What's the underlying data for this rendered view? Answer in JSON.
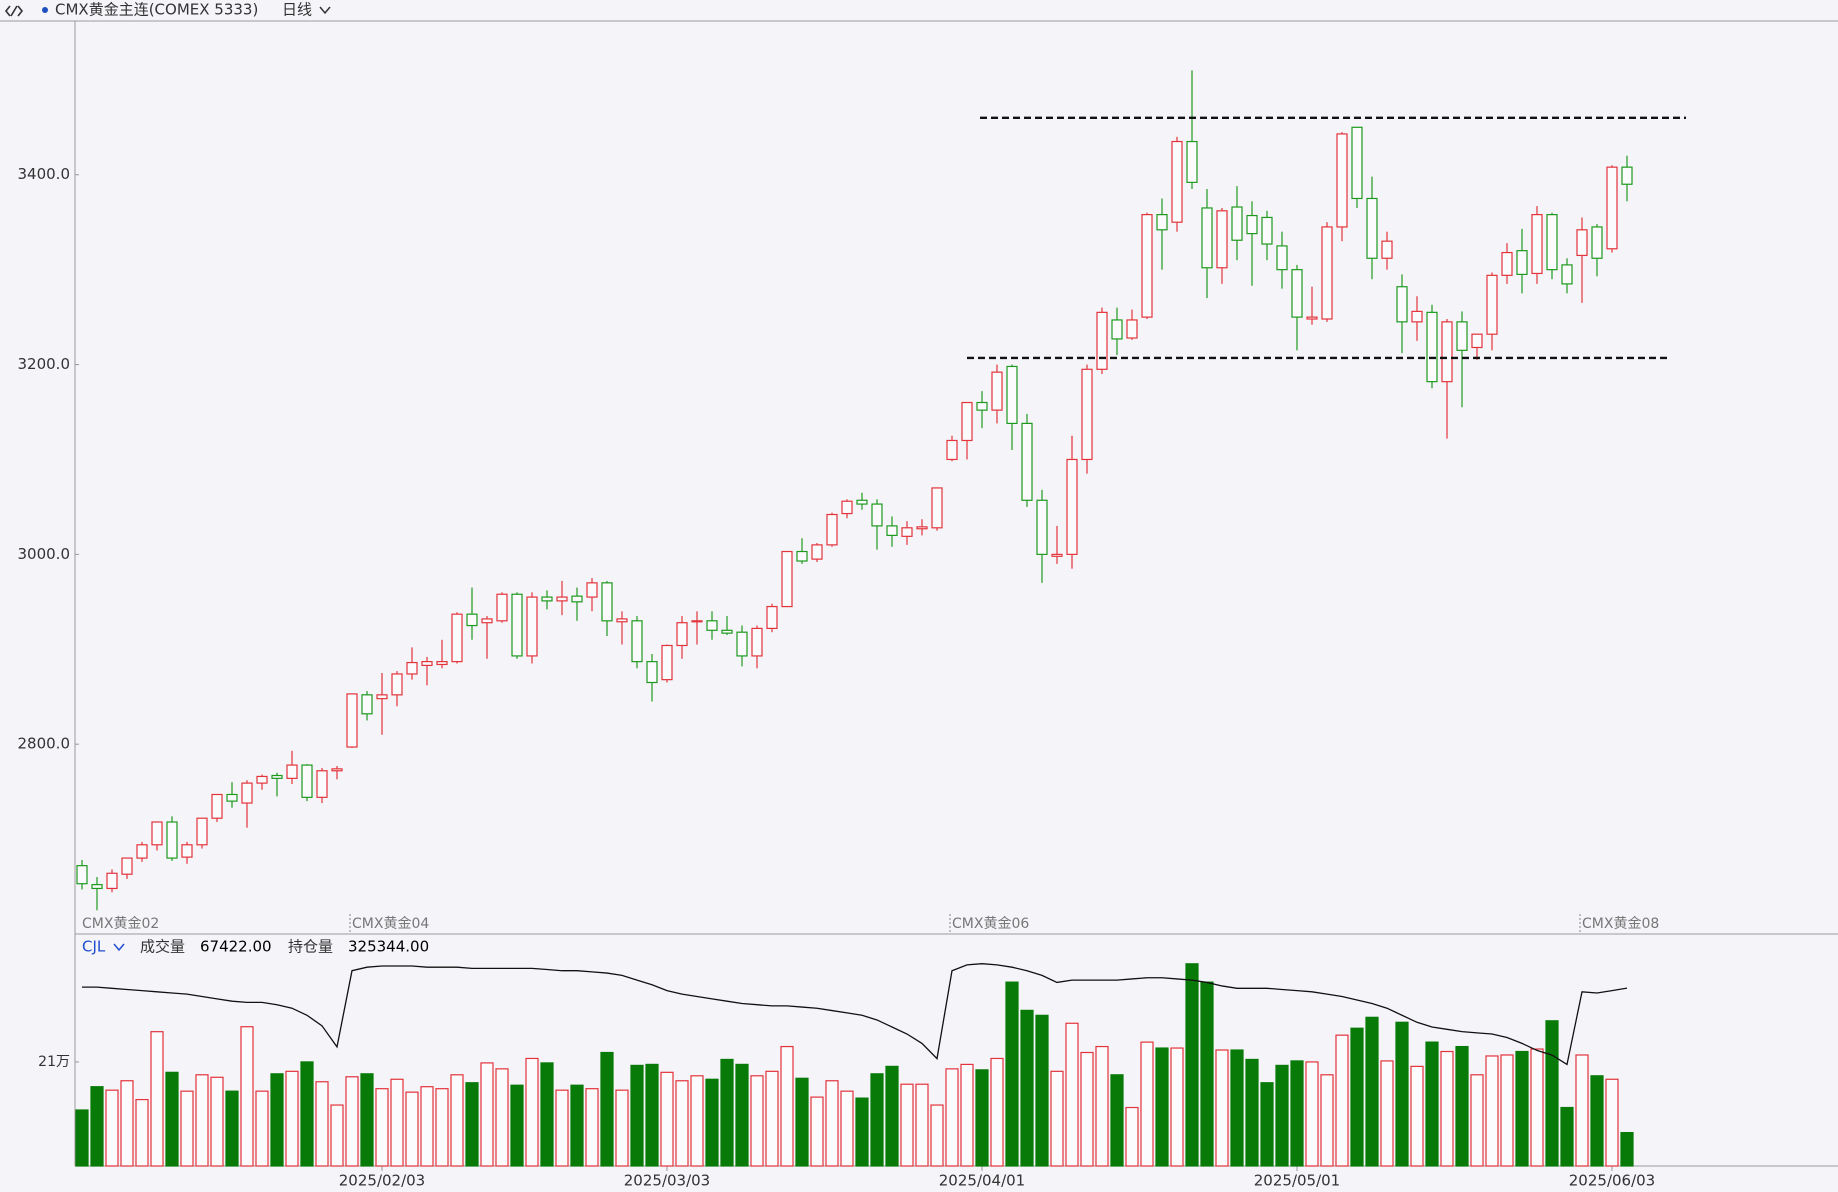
{
  "header": {
    "title": "CMX黄金主连(COMEX 5333)",
    "period": "日线"
  },
  "chart_data": [
    {
      "type": "candlestick",
      "categories": [
        "CMX黄金02",
        null,
        null,
        null,
        null,
        null,
        null,
        null,
        null,
        null,
        null,
        null,
        null,
        null,
        null,
        null,
        null,
        null,
        "CMX黄金04",
        null,
        null,
        null,
        null,
        null,
        null,
        null,
        null,
        null,
        null,
        null,
        null,
        null,
        null,
        null,
        null,
        null,
        null,
        null,
        null,
        null,
        null,
        null,
        null,
        null,
        null,
        null,
        null,
        null,
        null,
        null,
        null,
        null,
        null,
        null,
        null,
        null,
        null,
        null,
        "CMX黄金06",
        null,
        null,
        null,
        null,
        null,
        null,
        null,
        null,
        null,
        null,
        null,
        null,
        null,
        null,
        null,
        null,
        null,
        null,
        null,
        null,
        null,
        null,
        null,
        null,
        null,
        null,
        null,
        null,
        null,
        null,
        null,
        null,
        null,
        null,
        null,
        null,
        null,
        null,
        null,
        null,
        null,
        "CMX黄金08",
        null,
        null,
        null
      ],
      "open": [
        2672,
        2652,
        2648,
        2663,
        2680,
        2694,
        2718,
        2681,
        2694,
        2722,
        2747,
        2738,
        2759,
        2767,
        2764,
        2778,
        2744,
        2772,
        2797,
        2852,
        2848,
        2852,
        2874,
        2883,
        2884,
        2887,
        2937,
        2928,
        2930,
        2958,
        2893,
        2955,
        2951,
        2956,
        2955,
        2970,
        2929,
        2930,
        2887,
        2868,
        2904,
        2930,
        2930,
        2920,
        2918,
        2893,
        2922,
        2945,
        3003,
        2995,
        3010,
        3043,
        3057,
        3053,
        3030,
        3019,
        3027,
        3028,
        3100,
        3120,
        3160,
        3152,
        3198,
        3138,
        3057,
        2998,
        3000,
        3100,
        3195,
        3247,
        3228,
        3250,
        3358,
        3350,
        3435,
        3365,
        3302,
        3366,
        3357,
        3355,
        3325,
        3300,
        3248,
        3248,
        3345,
        3450,
        3375,
        3312,
        3282,
        3245,
        3255,
        3182,
        3245,
        3218,
        3232,
        3294,
        3320,
        3296,
        3358,
        3305,
        3315,
        3345,
        3322,
        3408
      ],
      "high": [
        2678,
        2660,
        2668,
        2680,
        2697,
        2718,
        2724,
        2697,
        2722,
        2746,
        2760,
        2762,
        2768,
        2770,
        2793,
        2779,
        2775,
        2777,
        2853,
        2856,
        2875,
        2877,
        2902,
        2892,
        2910,
        2939,
        2965,
        2935,
        2960,
        2960,
        2960,
        2962,
        2972,
        2965,
        2975,
        2972,
        2940,
        2935,
        2895,
        2905,
        2935,
        2940,
        2940,
        2935,
        2925,
        2925,
        2948,
        3003,
        3017,
        3012,
        3044,
        3058,
        3065,
        3058,
        3040,
        3035,
        3037,
        3070,
        3125,
        3160,
        3172,
        3200,
        3200,
        3148,
        3068,
        3030,
        3125,
        3200,
        3260,
        3260,
        3258,
        3360,
        3375,
        3440,
        3510,
        3385,
        3365,
        3388,
        3372,
        3362,
        3340,
        3305,
        3282,
        3350,
        3445,
        3450,
        3398,
        3340,
        3295,
        3272,
        3263,
        3248,
        3256,
        3232,
        3297,
        3328,
        3343,
        3367,
        3360,
        3312,
        3355,
        3348,
        3410,
        3420
      ],
      "low": [
        2647,
        2625,
        2644,
        2658,
        2676,
        2688,
        2677,
        2674,
        2690,
        2718,
        2733,
        2712,
        2752,
        2745,
        2758,
        2740,
        2738,
        2763,
        2796,
        2825,
        2810,
        2840,
        2868,
        2862,
        2880,
        2885,
        2910,
        2890,
        2928,
        2890,
        2885,
        2942,
        2936,
        2930,
        2940,
        2914,
        2905,
        2880,
        2845,
        2865,
        2890,
        2905,
        2910,
        2915,
        2882,
        2880,
        2918,
        2945,
        2990,
        2992,
        3008,
        3038,
        3047,
        3005,
        3008,
        3010,
        3020,
        3025,
        3098,
        3100,
        3133,
        3138,
        3110,
        3050,
        2970,
        2990,
        2985,
        3085,
        3190,
        3210,
        3226,
        3248,
        3300,
        3340,
        3385,
        3270,
        3285,
        3310,
        3283,
        3310,
        3280,
        3215,
        3242,
        3245,
        3330,
        3365,
        3290,
        3300,
        3212,
        3225,
        3175,
        3122,
        3155,
        3205,
        3215,
        3285,
        3275,
        3285,
        3290,
        3275,
        3265,
        3293,
        3318,
        3372
      ],
      "close": [
        2653,
        2648,
        2664,
        2680,
        2694,
        2718,
        2680,
        2694,
        2722,
        2747,
        2740,
        2759,
        2766,
        2764,
        2778,
        2744,
        2772,
        2774,
        2853,
        2832,
        2852,
        2874,
        2886,
        2887,
        2887,
        2937,
        2925,
        2932,
        2958,
        2893,
        2955,
        2951,
        2955,
        2950,
        2970,
        2930,
        2932,
        2887,
        2865,
        2904,
        2928,
        2930,
        2920,
        2917,
        2893,
        2922,
        2945,
        3003,
        2993,
        3010,
        3042,
        3056,
        3053,
        3030,
        3020,
        3028,
        3029,
        3070,
        3120,
        3160,
        3152,
        3192,
        3138,
        3057,
        3000,
        3000,
        3100,
        3195,
        3255,
        3227,
        3247,
        3358,
        3342,
        3435,
        3392,
        3302,
        3362,
        3331,
        3338,
        3327,
        3300,
        3250,
        3250,
        3345,
        3443,
        3375,
        3312,
        3330,
        3245,
        3256,
        3182,
        3245,
        3215,
        3232,
        3294,
        3318,
        3295,
        3358,
        3300,
        3285,
        3342,
        3312,
        3408,
        3390
      ],
      "up_color": "#e3343b",
      "down_color": "#1d9a1d",
      "ylim": [
        2600,
        3562
      ],
      "yticks": [
        {
          "value": 2800,
          "label": "2800.0"
        },
        {
          "value": 3000,
          "label": "3000.0"
        },
        {
          "value": 3200,
          "label": "3200.0"
        },
        {
          "value": 3400,
          "label": "3400.0"
        }
      ],
      "hlines": [
        {
          "value": 3460
        },
        {
          "value": 3207
        }
      ],
      "hline_style": "dashed"
    },
    {
      "type": "bar",
      "title": "CJL",
      "categories": [
        null,
        null,
        null,
        null,
        null,
        null,
        null,
        null,
        null,
        null,
        null,
        null,
        null,
        null,
        null,
        null,
        null,
        null,
        null,
        null,
        "2025/02/03",
        null,
        null,
        null,
        null,
        null,
        null,
        null,
        null,
        null,
        null,
        null,
        null,
        null,
        null,
        null,
        null,
        null,
        null,
        "2025/03/03",
        null,
        null,
        null,
        null,
        null,
        null,
        null,
        null,
        null,
        null,
        null,
        null,
        null,
        null,
        null,
        null,
        null,
        null,
        null,
        null,
        "2025/04/01",
        null,
        null,
        null,
        null,
        null,
        null,
        null,
        null,
        null,
        null,
        null,
        null,
        null,
        null,
        null,
        null,
        null,
        null,
        null,
        null,
        "2025/05/01",
        null,
        null,
        null,
        null,
        null,
        null,
        null,
        null,
        null,
        null,
        null,
        null,
        null,
        null,
        null,
        null,
        null,
        null,
        null,
        null,
        "2025/06/03",
        null
      ],
      "series": [
        {
          "name": "成交量",
          "color": "#087a08",
          "value_label": "67422.00",
          "values": [
            113000,
            160000,
            153000,
            172000,
            134000,
            271000,
            189000,
            151000,
            184000,
            179000,
            151000,
            281000,
            151000,
            186000,
            191000,
            210000,
            170000,
            123000,
            180000,
            186000,
            156000,
            175000,
            149000,
            160000,
            156000,
            184000,
            168000,
            208000,
            196000,
            163000,
            217000,
            208000,
            153000,
            163000,
            156000,
            229000,
            153000,
            203000,
            205000,
            189000,
            172000,
            182000,
            175000,
            215000,
            205000,
            182000,
            191000,
            241000,
            177000,
            139000,
            172000,
            151000,
            137000,
            186000,
            201000,
            165000,
            165000,
            123000,
            196000,
            205000,
            194000,
            217000,
            371000,
            314000,
            304000,
            191000,
            288000,
            229000,
            241000,
            184000,
            118000,
            250000,
            238000,
            238000,
            408000,
            371000,
            234000,
            234000,
            215000,
            168000,
            203000,
            212000,
            210000,
            184000,
            264000,
            278000,
            300000,
            212000,
            290000,
            201000,
            250000,
            231000,
            241000,
            184000,
            222000,
            224000,
            231000,
            236000,
            293000,
            118000,
            224000,
            182000,
            175000,
            67422
          ]
        },
        {
          "name": "持仓量",
          "type": "line",
          "axis": "y2",
          "color": "#111111",
          "value_label": "325344.00",
          "values": [
            327500,
            327500,
            325000,
            322500,
            320000,
            317500,
            315000,
            312500,
            307500,
            302500,
            297500,
            295000,
            295000,
            290000,
            282500,
            267500,
            245000,
            200000,
            362500,
            370000,
            372500,
            372500,
            372500,
            370000,
            370000,
            370000,
            367500,
            367500,
            367500,
            367500,
            367500,
            365000,
            362500,
            362500,
            360000,
            357500,
            352500,
            342500,
            332500,
            320000,
            312500,
            307500,
            302500,
            297500,
            292500,
            290000,
            287500,
            287500,
            285000,
            282500,
            277500,
            272500,
            267500,
            257500,
            242500,
            227500,
            207500,
            175000,
            362500,
            375000,
            377500,
            375000,
            370000,
            362500,
            352500,
            337500,
            342500,
            342500,
            342500,
            342500,
            345000,
            347500,
            347500,
            345000,
            342500,
            337500,
            330000,
            325000,
            325000,
            325000,
            322500,
            320000,
            317500,
            312500,
            307500,
            300000,
            292500,
            282500,
            267500,
            252500,
            242500,
            237500,
            232500,
            230000,
            227500,
            220000,
            207500,
            192500,
            182500,
            162500,
            317500,
            315000,
            320000,
            325344
          ]
        }
      ],
      "ylim": [
        0,
        456000
      ],
      "yticks": [
        {
          "value": 210000,
          "label": "21万"
        }
      ],
      "y2lim": [
        -54000,
        428000
      ]
    }
  ]
}
